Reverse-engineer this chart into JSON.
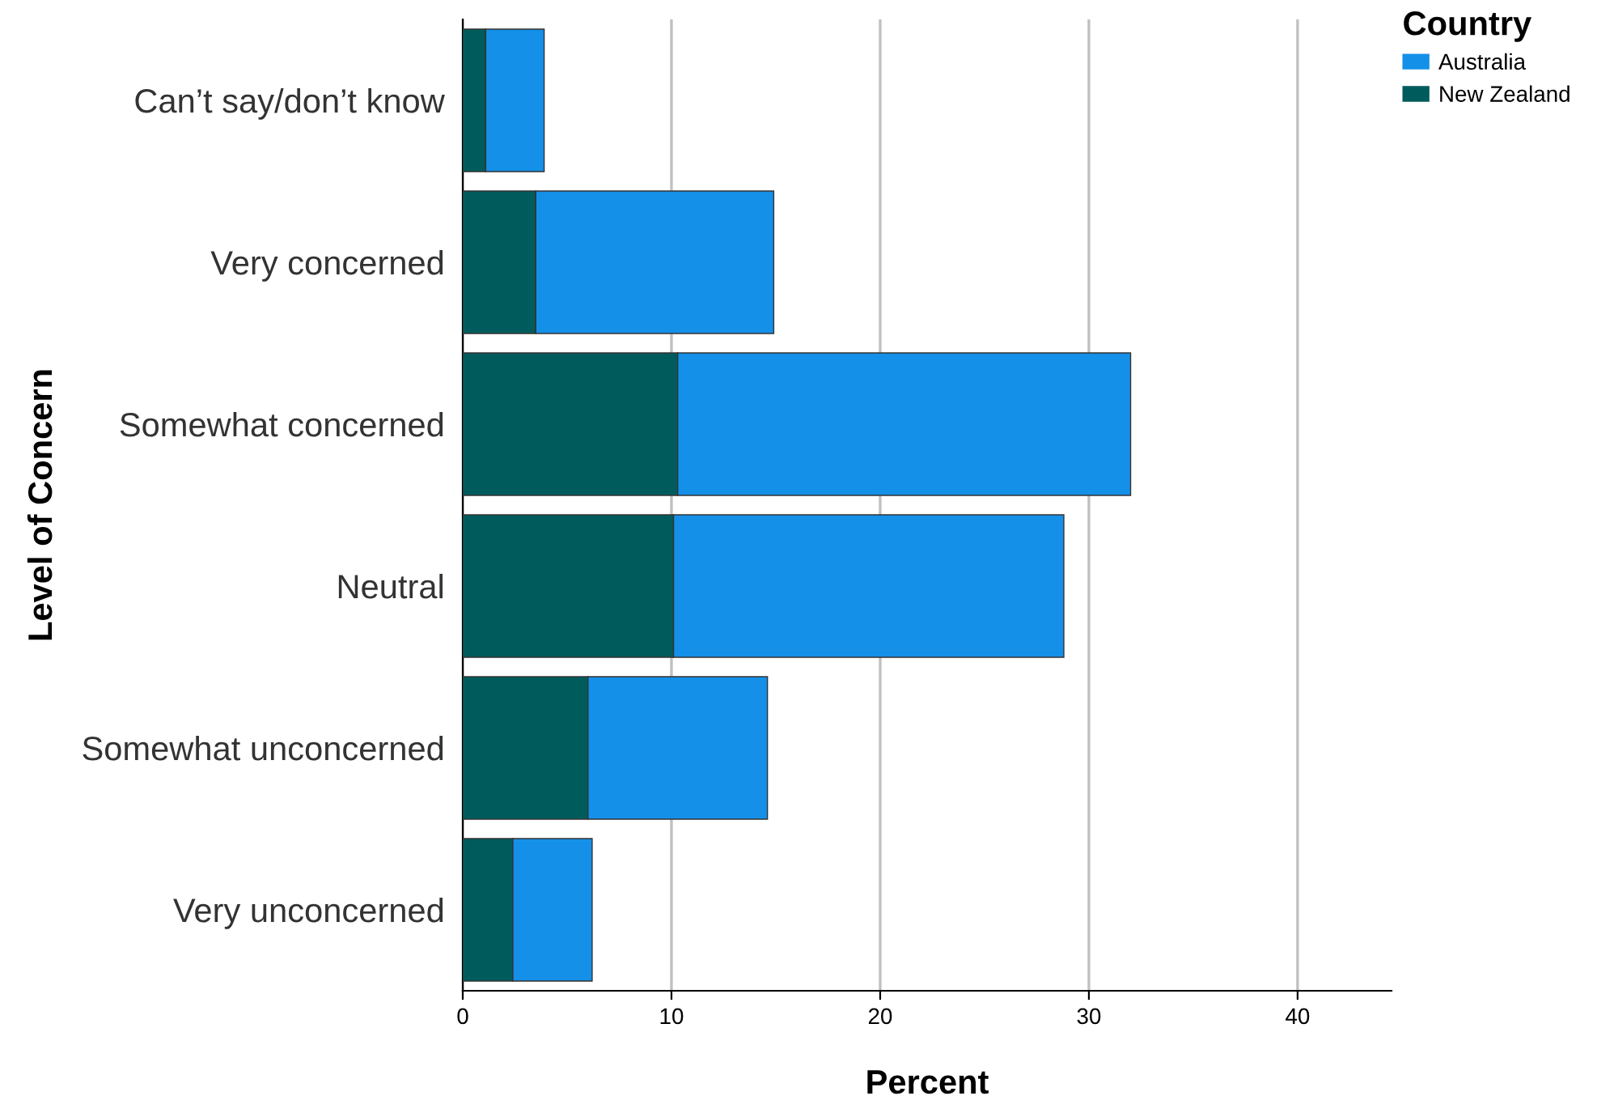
{
  "chart_data": {
    "type": "bar",
    "orientation": "horizontal",
    "stacked": true,
    "categories": [
      "Can’t say/don’t know",
      "Very concerned",
      "Somewhat concerned",
      "Neutral",
      "Somewhat unconcerned",
      "Very unconcerned"
    ],
    "series": [
      {
        "name": "New Zealand",
        "color": "#005c5c",
        "values": [
          1.1,
          3.5,
          10.3,
          10.1,
          6.0,
          2.4
        ]
      },
      {
        "name": "Australia",
        "color": "#1490e8",
        "values": [
          2.8,
          11.4,
          21.7,
          18.7,
          8.6,
          3.8
        ]
      }
    ],
    "xlabel": "Percent",
    "ylabel": "Level of Concern",
    "legend_title": "Country",
    "xlim": [
      0,
      44.5
    ],
    "xticks": [
      0,
      10,
      20,
      30,
      40
    ],
    "grid": "x",
    "legend": "top right"
  }
}
